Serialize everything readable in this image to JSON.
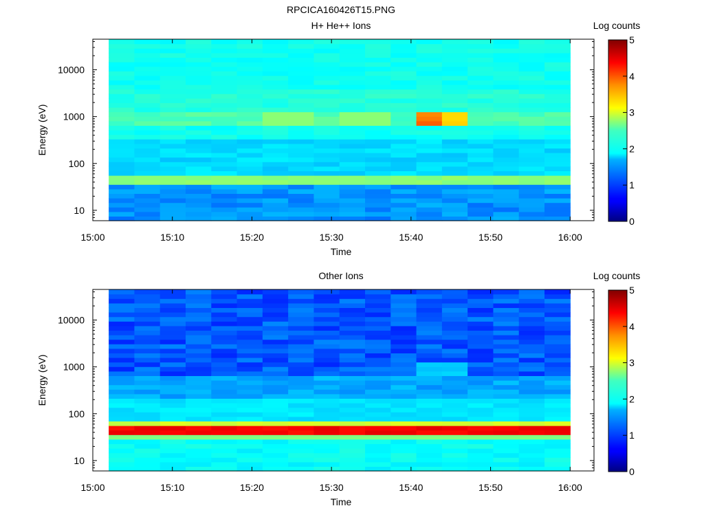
{
  "figure_title": "RPCICA160426T15.PNG",
  "chart_data": [
    {
      "type": "heatmap",
      "title": "H+ He++ Ions",
      "xlabel": "Time",
      "ylabel": "Energy (eV)",
      "x_ticks": [
        "15:00",
        "15:10",
        "15:20",
        "15:30",
        "15:40",
        "15:50",
        "16:00"
      ],
      "y_ticks": [
        "10",
        "100",
        "1000",
        "10000"
      ],
      "y_scale": "log",
      "y_range_eV": [
        6,
        45000
      ],
      "x_range": [
        "15:00",
        "16:03"
      ],
      "data_x_range": [
        "15:02",
        "16:00"
      ],
      "colorbar": {
        "label": "Log counts",
        "ticks": [
          "0",
          "1",
          "2",
          "3",
          "4",
          "5"
        ],
        "range": [
          0,
          5
        ],
        "colormap": "jet"
      },
      "features": "Background ~2 log counts; narrow band at ~45 eV (~2.5); band near 1000 eV (~2.5) peaking at 15:41-15:47 (~3.5-4); low-energy bins below 40 eV ~1.3"
    },
    {
      "type": "heatmap",
      "title": "Other Ions",
      "xlabel": "Time",
      "ylabel": "Energy (eV)",
      "x_ticks": [
        "15:00",
        "15:10",
        "15:20",
        "15:30",
        "15:40",
        "15:50",
        "16:00"
      ],
      "y_ticks": [
        "10",
        "100",
        "1000",
        "10000"
      ],
      "y_scale": "log",
      "y_range_eV": [
        6,
        45000
      ],
      "x_range": [
        "15:00",
        "16:03"
      ],
      "data_x_range": [
        "15:02",
        "16:00"
      ],
      "colorbar": {
        "label": "Log counts",
        "ticks": [
          "0",
          "1",
          "2",
          "3",
          "4",
          "5"
        ],
        "range": [
          0,
          5
        ],
        "colormap": "jet"
      },
      "features": "Background ~0.9-1.2 above 1000 eV rising to ~1.8 near 100 eV; intense band at ~40-50 eV (~4.2-4.6); ~2 below 30 eV; slight enhancement near 1000 eV at 15:41-15:47"
    }
  ]
}
